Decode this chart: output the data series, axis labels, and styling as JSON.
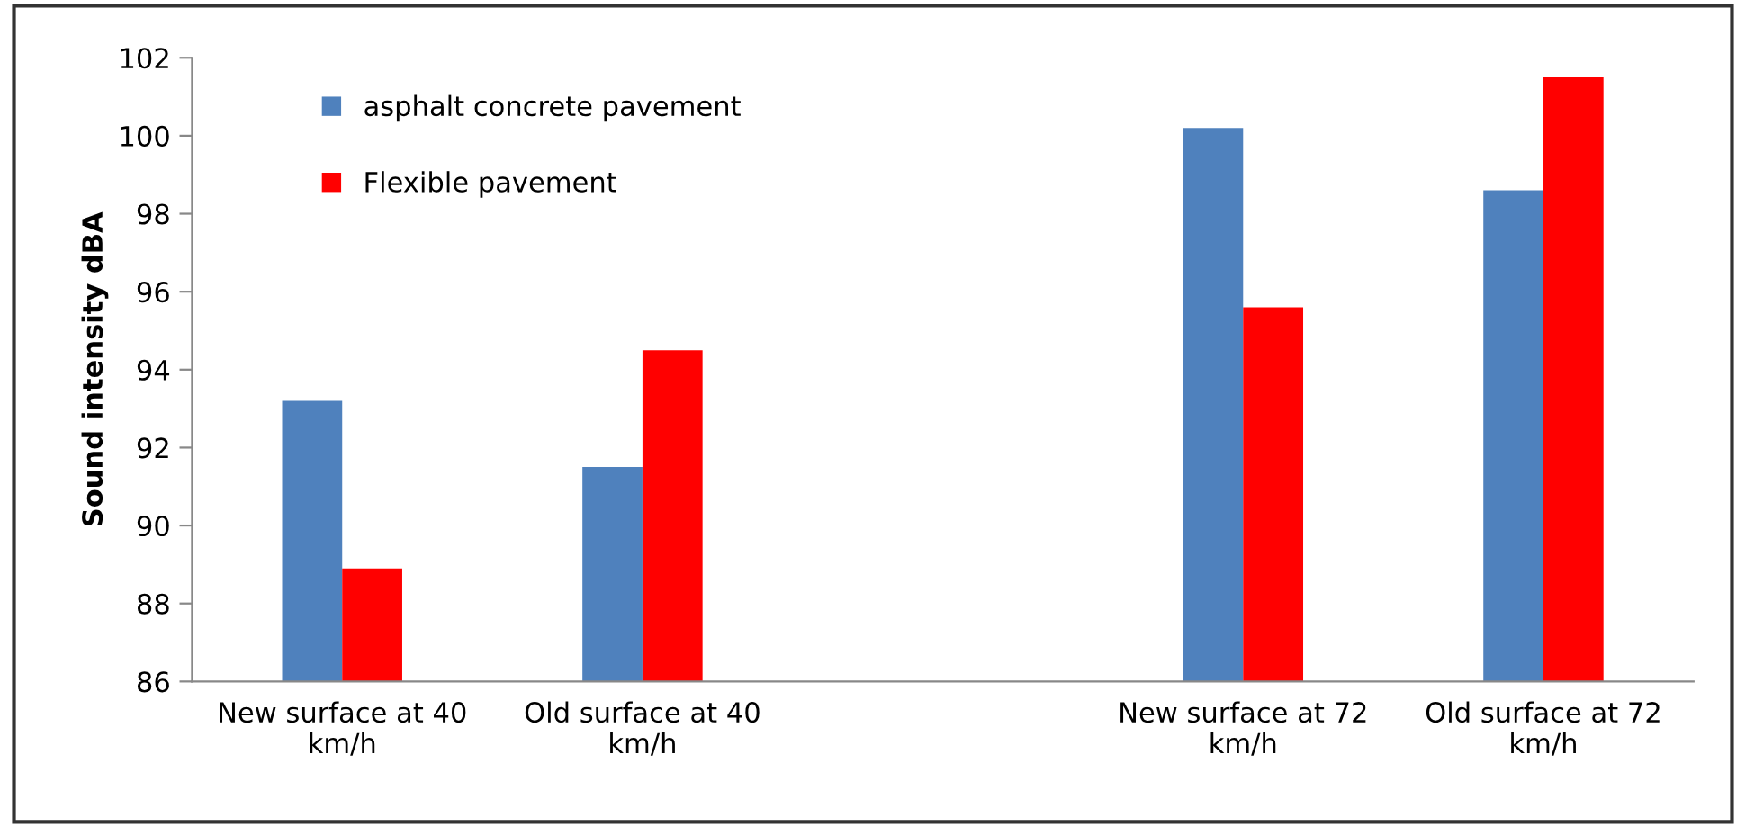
{
  "chart_data": {
    "type": "bar",
    "ylabel": "Sound intensity dBA",
    "categories": [
      "New surface at 40\nkm/h",
      "Old surface at 40\nkm/h",
      null,
      "New surface at 72\nkm/h",
      "Old surface at 72\nkm/h"
    ],
    "series": [
      {
        "name": "asphalt concrete pavement",
        "color": "#4f81bd",
        "values": [
          93.2,
          91.5,
          null,
          100.2,
          98.6
        ]
      },
      {
        "name": "Flexible pavement",
        "color": "#ff0000",
        "values": [
          88.9,
          94.5,
          null,
          95.6,
          101.5
        ]
      }
    ],
    "ylim": [
      86,
      102
    ],
    "yticks": [
      86,
      88,
      90,
      92,
      94,
      96,
      98,
      100,
      102
    ],
    "grid": false,
    "legend": "top left"
  }
}
